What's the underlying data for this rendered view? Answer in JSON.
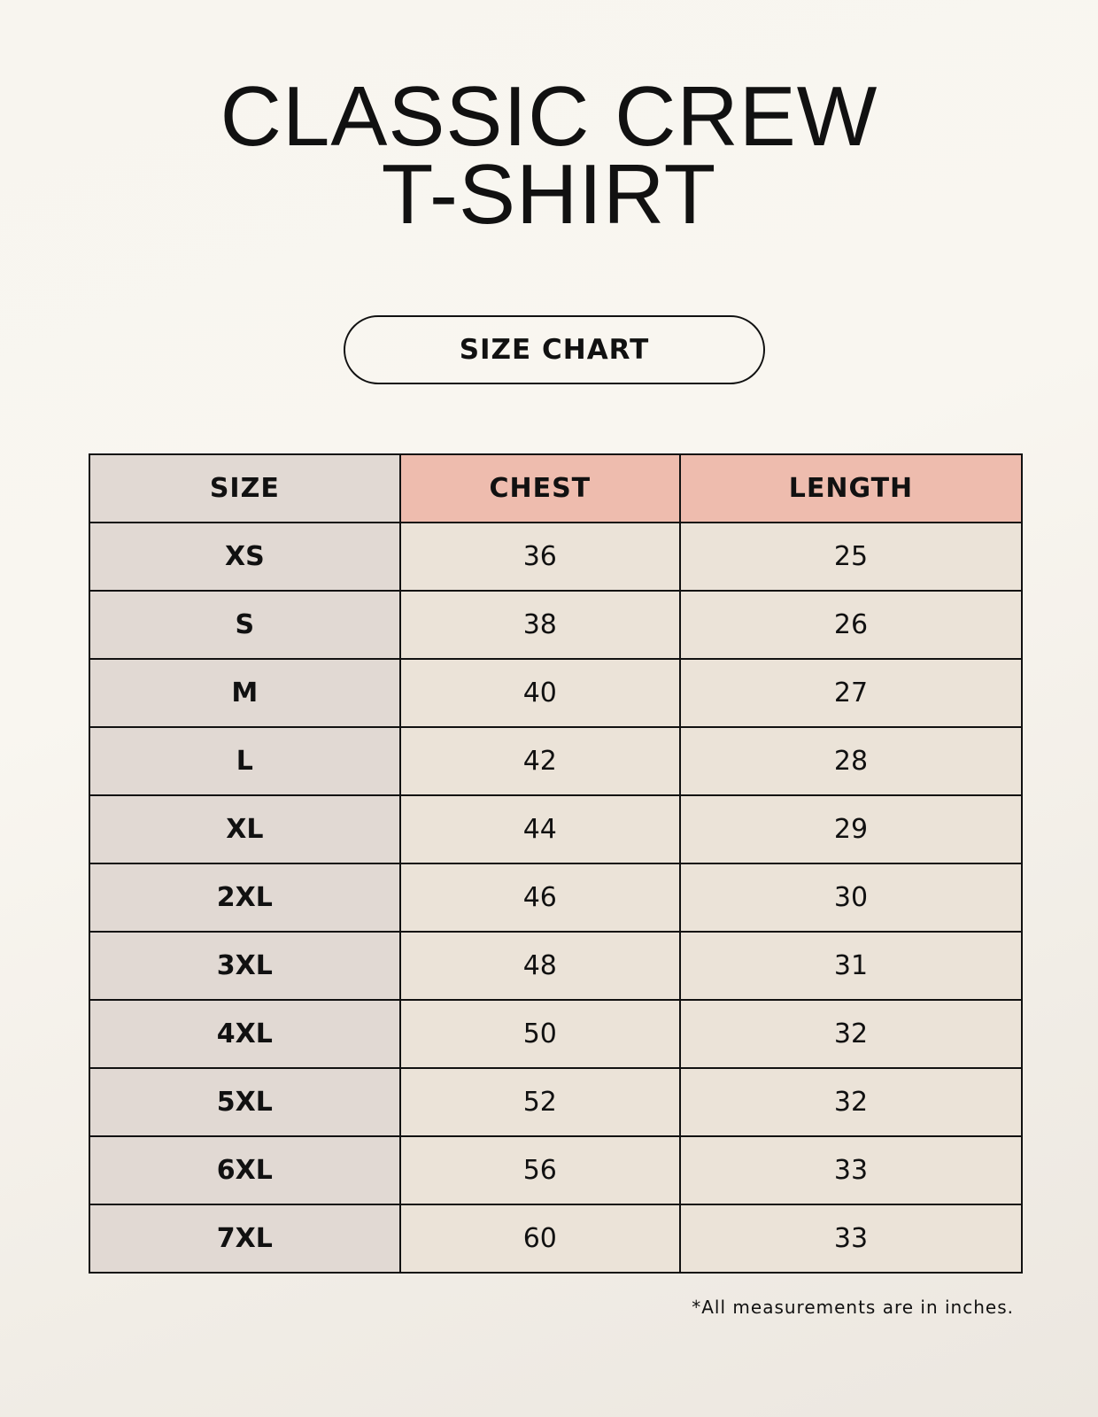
{
  "title_lines": [
    "CLASSIC CREW",
    "T-SHIRT"
  ],
  "badge": "SIZE CHART",
  "table": {
    "headers": [
      "SIZE",
      "CHEST",
      "LENGTH"
    ],
    "rows": [
      [
        "XS",
        "36",
        "25"
      ],
      [
        "S",
        "38",
        "26"
      ],
      [
        "M",
        "40",
        "27"
      ],
      [
        "L",
        "42",
        "28"
      ],
      [
        "XL",
        "44",
        "29"
      ],
      [
        "2XL",
        "46",
        "30"
      ],
      [
        "3XL",
        "48",
        "31"
      ],
      [
        "4XL",
        "50",
        "32"
      ],
      [
        "5XL",
        "52",
        "32"
      ],
      [
        "6XL",
        "56",
        "33"
      ],
      [
        "7XL",
        "60",
        "33"
      ]
    ]
  },
  "footnote": "*All measurements are in inches.",
  "colors": {
    "header_accent": "#eebcae",
    "size_column": "#e1d9d3",
    "value_cells": "#ebe3d8"
  }
}
